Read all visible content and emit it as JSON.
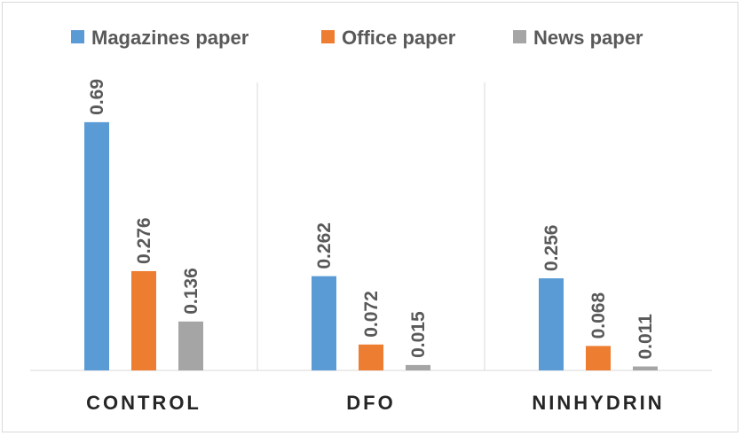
{
  "chart_data": {
    "type": "bar",
    "categories": [
      "CONTROL",
      "DFO",
      "NINHYDRIN"
    ],
    "series": [
      {
        "name": "Magazines paper",
        "color": "#5b9bd5",
        "values": [
          0.69,
          0.262,
          0.256
        ],
        "labels": [
          "0.69",
          "0.262",
          "0.256"
        ]
      },
      {
        "name": "Office paper",
        "color": "#ed7d31",
        "values": [
          0.276,
          0.072,
          0.068
        ],
        "labels": [
          "0.276",
          "0.072",
          "0.068"
        ]
      },
      {
        "name": "News paper",
        "color": "#a5a5a5",
        "values": [
          0.136,
          0.015,
          0.011
        ],
        "labels": [
          "0.136",
          "0.015",
          "0.011"
        ]
      }
    ],
    "ylim": [
      0,
      0.75
    ],
    "legend_position": "top",
    "gridlines": "vertical category separators"
  }
}
